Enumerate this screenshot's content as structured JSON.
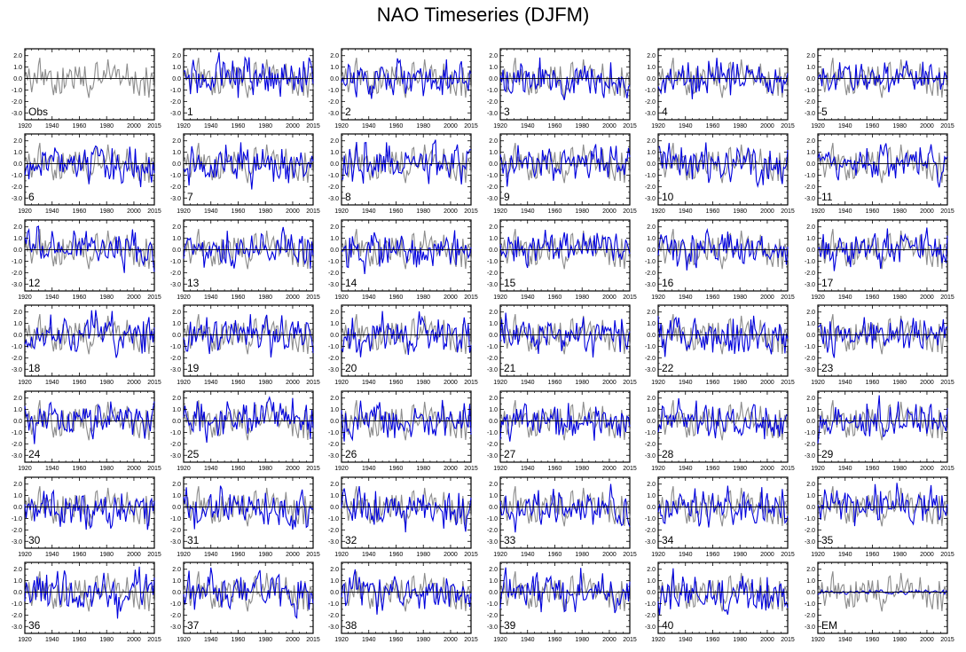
{
  "title": "NAO Timeseries (DJFM)",
  "chart_data": {
    "type": "line",
    "title": "NAO Timeseries (DJFM)",
    "layout": "7 rows x 6 columns of small multiples",
    "x_ticks": [
      1920,
      1940,
      1960,
      1980,
      2000,
      2015
    ],
    "y_ticks": [
      "2.0",
      "1.0",
      "0.0",
      "-1.0",
      "-2.0",
      "-3.0"
    ],
    "xlim": [
      1920,
      2015
    ],
    "ylim": [
      -3.6,
      2.6
    ],
    "zero_line": true,
    "colors": {
      "obs": "#8c8c8c",
      "member": "#0000dd",
      "zero": "#000000"
    },
    "panels": [
      {
        "label": "Obs",
        "seed": 0
      },
      {
        "label": "1",
        "seed": 1
      },
      {
        "label": "2",
        "seed": 2
      },
      {
        "label": "3",
        "seed": 3
      },
      {
        "label": "4",
        "seed": 4
      },
      {
        "label": "5",
        "seed": 5
      },
      {
        "label": "6",
        "seed": 6
      },
      {
        "label": "7",
        "seed": 7
      },
      {
        "label": "8",
        "seed": 8
      },
      {
        "label": "9",
        "seed": 9
      },
      {
        "label": "10",
        "seed": 10
      },
      {
        "label": "11",
        "seed": 11
      },
      {
        "label": "12",
        "seed": 12
      },
      {
        "label": "13",
        "seed": 13
      },
      {
        "label": "14",
        "seed": 14
      },
      {
        "label": "15",
        "seed": 15
      },
      {
        "label": "16",
        "seed": 16
      },
      {
        "label": "17",
        "seed": 17
      },
      {
        "label": "18",
        "seed": 18
      },
      {
        "label": "19",
        "seed": 19
      },
      {
        "label": "20",
        "seed": 20
      },
      {
        "label": "21",
        "seed": 21
      },
      {
        "label": "22",
        "seed": 22
      },
      {
        "label": "23",
        "seed": 23
      },
      {
        "label": "24",
        "seed": 24
      },
      {
        "label": "25",
        "seed": 25
      },
      {
        "label": "26",
        "seed": 26
      },
      {
        "label": "27",
        "seed": 27
      },
      {
        "label": "28",
        "seed": 28
      },
      {
        "label": "29",
        "seed": 29
      },
      {
        "label": "30",
        "seed": 30
      },
      {
        "label": "31",
        "seed": 31
      },
      {
        "label": "32",
        "seed": 32
      },
      {
        "label": "33",
        "seed": 33
      },
      {
        "label": "34",
        "seed": 34
      },
      {
        "label": "35",
        "seed": 35
      },
      {
        "label": "36",
        "seed": 36
      },
      {
        "label": "37",
        "seed": 37
      },
      {
        "label": "38",
        "seed": 38
      },
      {
        "label": "39",
        "seed": 39
      },
      {
        "label": "40",
        "seed": 40
      },
      {
        "label": "EM",
        "seed": 41
      }
    ]
  }
}
